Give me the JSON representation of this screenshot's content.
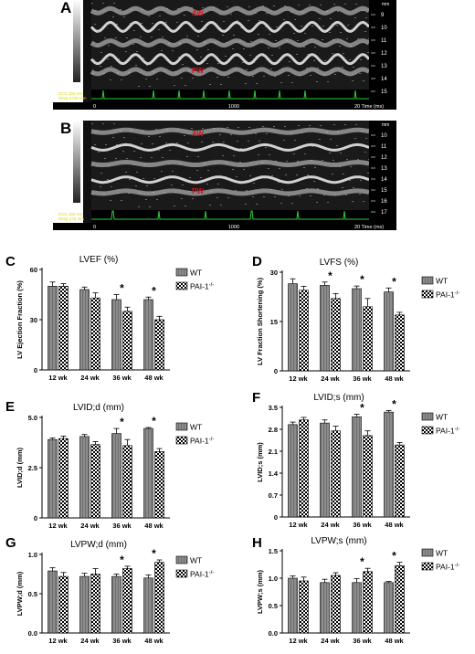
{
  "panels": {
    "A": {
      "letter": "A",
      "wall_labels": [
        "AW",
        "PW"
      ],
      "scale_unit": "mm",
      "scale_ticks": [
        "9",
        "10",
        "11",
        "12",
        "13",
        "14",
        "15"
      ],
      "time_ticks": [
        "0",
        "1000",
        "20 Time (ms)"
      ],
      "ecg_labels": [
        "ECG 150 mV",
        "Resp 2700 mm"
      ]
    },
    "B": {
      "letter": "B",
      "wall_labels": [
        "AW",
        "PW"
      ],
      "scale_unit": "mm",
      "scale_ticks": [
        "10",
        "11",
        "12",
        "13",
        "14",
        "15",
        "16",
        "17"
      ],
      "time_ticks": [
        "0",
        "1000",
        "20 Time (ms)"
      ],
      "ecg_labels": [
        "ECG 150 mV",
        "Resp 270 mm"
      ]
    }
  },
  "colors": {
    "wt_bar": "#8c8c8c",
    "pai_bar": "checkered",
    "star": "#000000",
    "wall_label": "#d8141e"
  },
  "chart_data": [
    {
      "id": "C",
      "letter": "C",
      "type": "bar",
      "title": "LVEF (%)",
      "ylabel": "LV Ejection  Fraction (%)",
      "xlabel": "",
      "categories": [
        "12 wk",
        "24 wk",
        "36 wk",
        "48 wk"
      ],
      "ylim": [
        0,
        60
      ],
      "yticks": [
        "0",
        "30",
        "60"
      ],
      "ytick_values": [
        0,
        30,
        60
      ],
      "series": [
        {
          "name": "WT",
          "values": [
            50,
            48,
            42,
            42
          ],
          "errors": [
            2.5,
            1.5,
            3,
            1.5
          ]
        },
        {
          "name": "PAI-1-/-",
          "values": [
            50,
            43,
            35,
            30
          ],
          "errors": [
            1.5,
            3,
            2.5,
            2
          ]
        }
      ],
      "significant": [
        false,
        false,
        true,
        true
      ],
      "star": "*",
      "legend": "right"
    },
    {
      "id": "D",
      "letter": "D",
      "type": "bar",
      "title": "LVFS (%)",
      "ylabel": "LV Fraction  Shortening (%)",
      "xlabel": "",
      "categories": [
        "12 wk",
        "24 wk",
        "36 wk",
        "48 wk"
      ],
      "ylim": [
        0,
        30
      ],
      "yticks": [
        "0",
        "15",
        "30"
      ],
      "ytick_values": [
        0,
        15,
        30
      ],
      "series": [
        {
          "name": "WT",
          "values": [
            26.5,
            26,
            25,
            24
          ],
          "errors": [
            1.5,
            1,
            0.8,
            1.2
          ]
        },
        {
          "name": "PAI-1-/-",
          "values": [
            24.5,
            22,
            19.5,
            17
          ],
          "errors": [
            1.2,
            1.5,
            2.5,
            0.8
          ]
        }
      ],
      "significant": [
        false,
        true,
        true,
        true
      ],
      "star": "*",
      "legend": "right"
    },
    {
      "id": "E",
      "letter": "E",
      "type": "bar",
      "title": "LVID;d (mm)",
      "ylabel": "LVID;d (mm)",
      "xlabel": "",
      "categories": [
        "12 wk",
        "24 wk",
        "36 wk",
        "48 wk"
      ],
      "ylim": [
        0,
        5.0
      ],
      "yticks": [
        "0",
        "2.5",
        "5.0"
      ],
      "ytick_values": [
        0,
        2.5,
        5.0
      ],
      "series": [
        {
          "name": "WT",
          "values": [
            3.9,
            4.05,
            4.2,
            4.45
          ],
          "errors": [
            0.08,
            0.1,
            0.25,
            0.05
          ]
        },
        {
          "name": "PAI-1-/-",
          "values": [
            3.95,
            3.65,
            3.6,
            3.3
          ],
          "errors": [
            0.12,
            0.15,
            0.3,
            0.15
          ]
        }
      ],
      "significant": [
        false,
        false,
        true,
        true
      ],
      "star": "*",
      "legend": "right"
    },
    {
      "id": "F",
      "letter": "F",
      "type": "bar",
      "title": "LVID;s (mm)",
      "ylabel": "LVID;s (mm)",
      "xlabel": "",
      "categories": [
        "12 wk",
        "24 wk",
        "36 wk",
        "48 wk"
      ],
      "ylim": [
        0,
        3.5
      ],
      "yticks": [
        "0",
        "0.7",
        "1.4",
        "2.1",
        "2.8",
        "3.5"
      ],
      "ytick_values": [
        0,
        0.7,
        1.4,
        2.1,
        2.8,
        3.5
      ],
      "series": [
        {
          "name": "WT",
          "values": [
            2.95,
            3.0,
            3.2,
            3.35
          ],
          "errors": [
            0.08,
            0.1,
            0.08,
            0.05
          ]
        },
        {
          "name": "PAI-1-/-",
          "values": [
            3.1,
            2.75,
            2.6,
            2.3
          ],
          "errors": [
            0.08,
            0.15,
            0.15,
            0.08
          ]
        }
      ],
      "significant": [
        false,
        false,
        true,
        true
      ],
      "star": "*",
      "legend": "right"
    },
    {
      "id": "G",
      "letter": "G",
      "type": "bar",
      "title": "LVPW;d (mm)",
      "ylabel": "LVPW;d (mm)",
      "xlabel": "",
      "categories": [
        "12 wk",
        "24 wk",
        "36 wk",
        "48 wk"
      ],
      "ylim": [
        0,
        1.0
      ],
      "yticks": [
        "0.0",
        "0.5",
        "1.0"
      ],
      "ytick_values": [
        0,
        0.5,
        1.0
      ],
      "series": [
        {
          "name": "WT",
          "values": [
            0.79,
            0.72,
            0.72,
            0.7
          ],
          "errors": [
            0.04,
            0.04,
            0.03,
            0.04
          ]
        },
        {
          "name": "PAI-1-/-",
          "values": [
            0.72,
            0.75,
            0.82,
            0.9
          ],
          "errors": [
            0.05,
            0.07,
            0.03,
            0.03
          ]
        }
      ],
      "significant": [
        false,
        false,
        true,
        true
      ],
      "star": "*",
      "legend": "right"
    },
    {
      "id": "H",
      "letter": "H",
      "type": "bar",
      "title": "LVPW;s (mm)",
      "ylabel": "LVPW;s (mm)",
      "xlabel": "",
      "categories": [
        "12 wk",
        "24 wk",
        "36 wk",
        "48 wk"
      ],
      "ylim": [
        0,
        1.5
      ],
      "yticks": [
        "0.0",
        "0.5",
        "1.0",
        "1.5"
      ],
      "ytick_values": [
        0,
        0.5,
        1.0,
        1.5
      ],
      "series": [
        {
          "name": "WT",
          "values": [
            1.0,
            0.92,
            0.92,
            0.92
          ],
          "errors": [
            0.04,
            0.06,
            0.07,
            0.02
          ]
        },
        {
          "name": "PAI-1-/-",
          "values": [
            0.95,
            1.05,
            1.12,
            1.23
          ],
          "errors": [
            0.07,
            0.05,
            0.06,
            0.06
          ]
        }
      ],
      "significant": [
        false,
        false,
        true,
        true
      ],
      "star": "*",
      "legend": "right"
    }
  ]
}
